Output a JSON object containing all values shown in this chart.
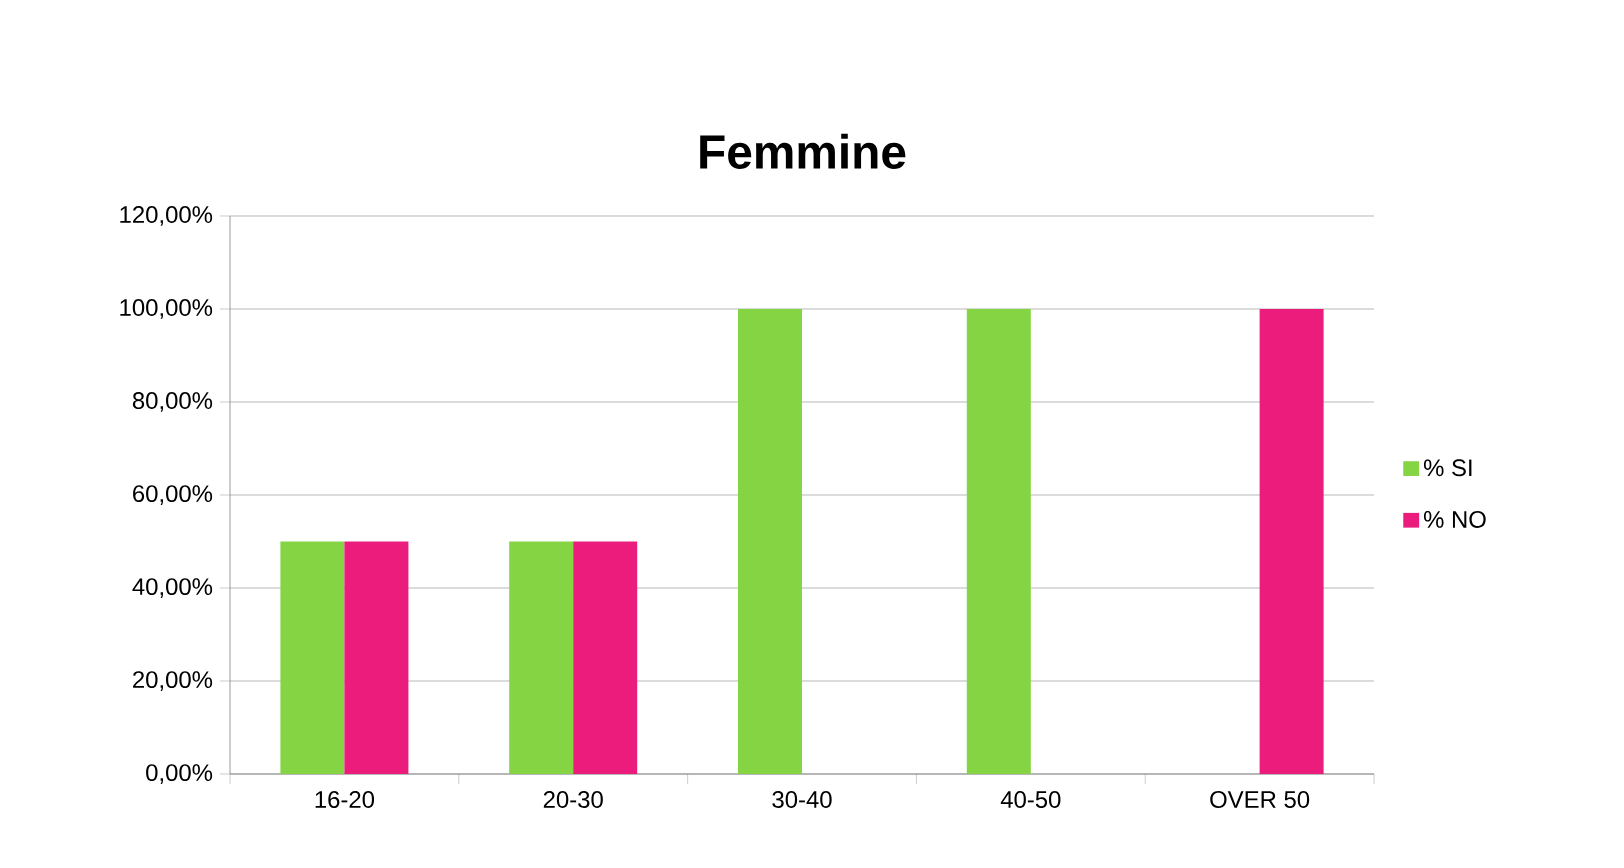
{
  "chart_data": {
    "type": "bar",
    "title": "Femmine",
    "categories": [
      "16-20",
      "20-30",
      "30-40",
      "40-50",
      "OVER 50"
    ],
    "series": [
      {
        "name": "% SI",
        "color": "#84d444",
        "values": [
          50,
          50,
          100,
          100,
          0
        ]
      },
      {
        "name": "% NO",
        "color": "#ec1c7c",
        "values": [
          50,
          50,
          0,
          0,
          100
        ]
      }
    ],
    "ylim": [
      0,
      120
    ],
    "yticks": [
      {
        "value": 0,
        "label": "0,00%"
      },
      {
        "value": 20,
        "label": "20,00%"
      },
      {
        "value": 40,
        "label": "40,00%"
      },
      {
        "value": 60,
        "label": "60,00%"
      },
      {
        "value": 80,
        "label": "80,00%"
      },
      {
        "value": 100,
        "label": "100,00%"
      },
      {
        "value": 120,
        "label": "120,00%"
      }
    ],
    "grid": "y",
    "legend": "right"
  }
}
